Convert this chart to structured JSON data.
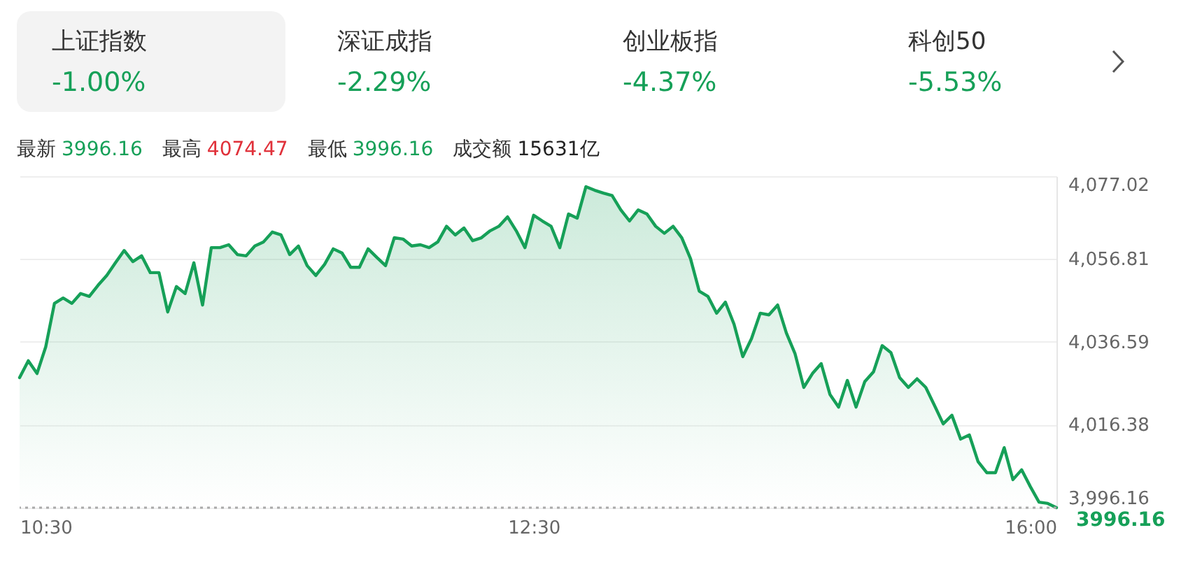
{
  "chart_data": [
    {
      "type": "other",
      "annotations": [
        "上证指数",
        "-1.00%",
        "深证成指",
        "-2.29%",
        "创业板指",
        "-4.37%",
        "科创50",
        "-5.53%"
      ]
    },
    {
      "type": "area",
      "annotations": [
        "最新",
        "3996.16",
        "最高",
        "4074.47",
        "最低",
        "3996.16",
        "成交额",
        "15631亿",
        "3996.16"
      ],
      "categories": [
        null,
        null,
        null,
        "10:30",
        null,
        null,
        null,
        null,
        null,
        null,
        null,
        null,
        null,
        null,
        null,
        null,
        null,
        null,
        null,
        null,
        null,
        null,
        null,
        null,
        null,
        null,
        null,
        null,
        null,
        null,
        null,
        null,
        null,
        null,
        null,
        null,
        null,
        null,
        null,
        null,
        null,
        null,
        null,
        null,
        null,
        null,
        null,
        null,
        null,
        null,
        null,
        null,
        null,
        null,
        null,
        null,
        null,
        null,
        null,
        "12:30",
        null,
        null,
        null,
        null,
        null,
        null,
        null,
        null,
        null,
        null,
        null,
        null,
        null,
        null,
        null,
        null,
        null,
        null,
        null,
        null,
        null,
        null,
        null,
        null,
        null,
        null,
        null,
        null,
        null,
        null,
        null,
        null,
        null,
        null,
        null,
        null,
        null,
        null,
        null,
        null,
        null,
        null,
        null,
        null,
        null,
        null,
        null,
        null,
        null,
        null,
        null,
        null,
        null,
        null,
        null,
        null,
        "16:00",
        null,
        null,
        null
      ],
      "series": [
        {
          "color": "#16a058",
          "values": [
            4027.9,
            4032.0,
            4028.9,
            4035.4,
            4046.0,
            4047.3,
            4046.0,
            4048.4,
            4047.7,
            4050.4,
            4052.8,
            4055.9,
            4058.9,
            4056.2,
            4057.6,
            4053.5,
            4053.5,
            4043.9,
            4050.1,
            4048.4,
            4055.9,
            4045.6,
            4059.6,
            4059.6,
            4060.3,
            4057.9,
            4057.6,
            4060.0,
            4061.0,
            4063.4,
            4062.7,
            4057.9,
            4060.0,
            4055.2,
            4052.8,
            4055.5,
            4059.3,
            4058.3,
            4054.8,
            4054.8,
            4059.3,
            4057.2,
            4055.2,
            4062.0,
            4061.7,
            4060.0,
            4060.3,
            4059.6,
            4061.0,
            4064.8,
            4062.7,
            4064.4,
            4061.3,
            4062.0,
            4063.7,
            4064.8,
            4067.1,
            4063.7,
            4059.6,
            4067.5,
            4066.1,
            4064.8,
            4059.6,
            4067.8,
            4066.8,
            4074.47,
            4073.6,
            4072.9,
            4072.3,
            4068.8,
            4066.1,
            4068.8,
            4067.8,
            4064.8,
            4063.1,
            4064.8,
            4062.0,
            4056.9,
            4049.0,
            4047.7,
            4043.6,
            4046.3,
            4040.9,
            4033.0,
            4037.4,
            4043.6,
            4043.2,
            4045.6,
            4038.8,
            4033.7,
            4025.5,
            4028.9,
            4031.3,
            4023.8,
            4020.7,
            4027.2,
            4020.7,
            4026.9,
            4029.3,
            4035.7,
            4034.0,
            4027.9,
            4025.5,
            4027.6,
            4025.5,
            4021.1,
            4016.6,
            4018.7,
            4012.9,
            4013.9,
            4007.4,
            4004.7,
            4004.7,
            4010.8,
            4003.0,
            4005.4,
            4001.3,
            3997.5,
            3997.2,
            3996.16
          ]
        }
      ],
      "ylim": [
        3996.16,
        4077.02
      ],
      "yticks": [
        {
          "value": 3996.16,
          "label": "3,996.16"
        },
        {
          "value": 4016.38,
          "label": "4,016.38"
        },
        {
          "value": 4036.59,
          "label": "4,036.59"
        },
        {
          "value": 4056.81,
          "label": "4,056.81"
        },
        {
          "value": 4077.02,
          "label": "4,077.02"
        }
      ],
      "grid": "y",
      "ref_lines": [
        {
          "axis": "y",
          "value": 3996.16,
          "color": "#aaaaaa",
          "line_style": "dotted"
        }
      ]
    }
  ]
}
